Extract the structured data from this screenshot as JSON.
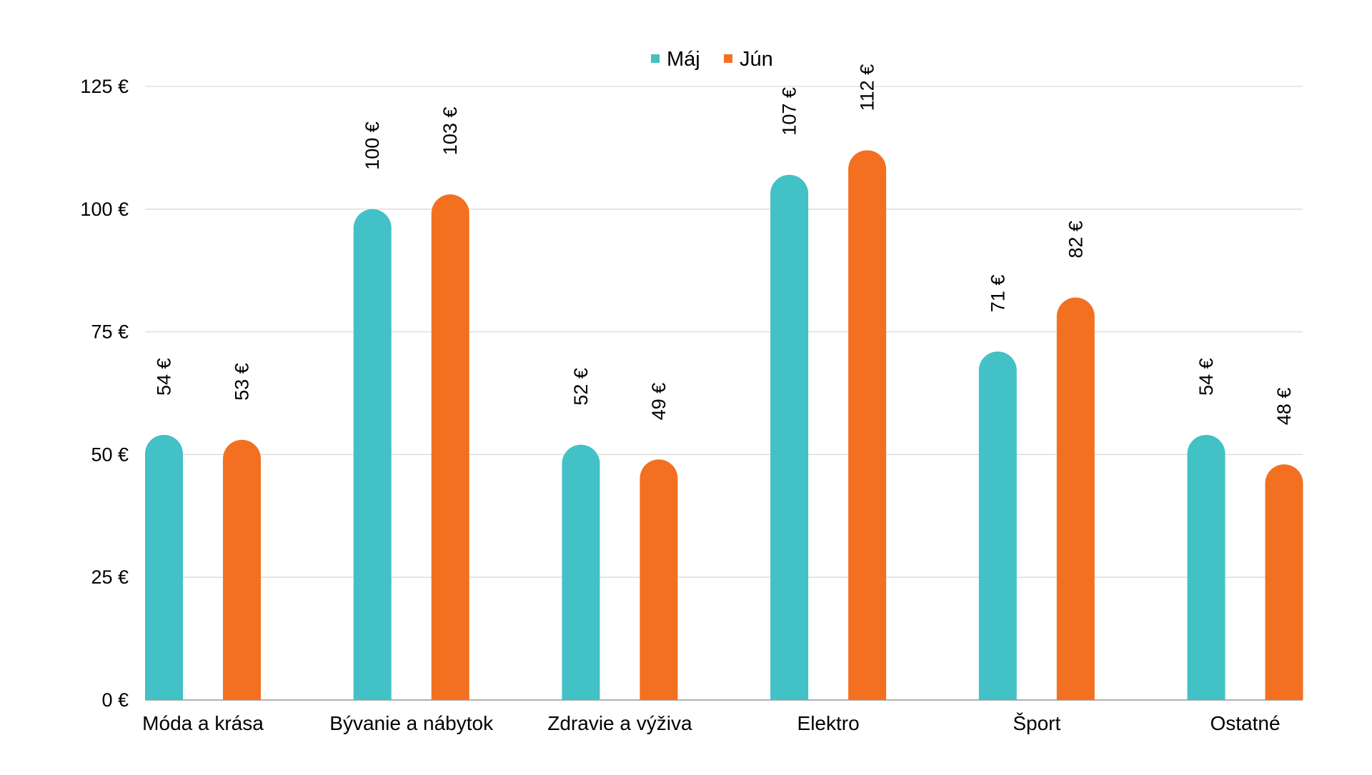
{
  "chart_data": {
    "type": "bar",
    "title": "",
    "xlabel": "",
    "ylabel": "",
    "categories": [
      "Móda a krása",
      "Bývanie a nábytok",
      "Zdravie a výživa",
      "Elektro",
      "Šport",
      "Ostatné"
    ],
    "series": [
      {
        "name": "Máj",
        "color": "#42C1C6",
        "values": [
          54,
          100,
          52,
          107,
          71,
          54
        ]
      },
      {
        "name": "Jún",
        "color": "#F37021",
        "values": [
          53,
          103,
          49,
          112,
          82,
          48
        ]
      }
    ],
    "value_suffix": " €",
    "ylim": [
      0,
      125
    ],
    "yticks": [
      0,
      25,
      50,
      75,
      100,
      125
    ],
    "ytick_labels": [
      "0 €",
      "25 €",
      "50 €",
      "75 €",
      "100 €",
      "125 €"
    ],
    "data_labels": [
      [
        "54 €",
        "100 €",
        "52 €",
        "107 €",
        "71 €",
        "54 €"
      ],
      [
        "53 €",
        "103 €",
        "49 €",
        "112 €",
        "82 €",
        "48 €"
      ]
    ],
    "grid": true,
    "legend_position": "top-center"
  }
}
